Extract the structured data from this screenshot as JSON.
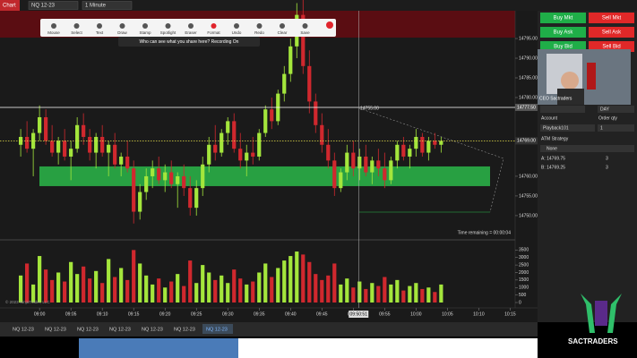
{
  "header": {
    "tab": "Chart",
    "instrument": "NQ 12-23",
    "interval": "1 Minute"
  },
  "toolbar": {
    "items": [
      "Mouse",
      "Select",
      "Text",
      "Draw",
      "Stamp",
      "Spotlight",
      "Eraser",
      "Format",
      "Undo",
      "Redo",
      "Clear",
      "Save"
    ],
    "notice": "Who can see what you share here? Recording On"
  },
  "chart_data": {
    "type": "candlestick",
    "candles": [
      [
        14768,
        14772,
        14765,
        14770
      ],
      [
        14770,
        14774,
        14766,
        14767
      ],
      [
        14767,
        14772,
        14760,
        14771
      ],
      [
        14771,
        14778,
        14769,
        14775
      ],
      [
        14775,
        14777,
        14768,
        14769
      ],
      [
        14769,
        14773,
        14765,
        14766
      ],
      [
        14766,
        14770,
        14763,
        14769
      ],
      [
        14769,
        14772,
        14764,
        14765
      ],
      [
        14765,
        14769,
        14759,
        14767
      ],
      [
        14767,
        14775,
        14766,
        14773
      ],
      [
        14773,
        14776,
        14768,
        14770
      ],
      [
        14770,
        14772,
        14764,
        14766
      ],
      [
        14766,
        14771,
        14762,
        14770
      ],
      [
        14770,
        14773,
        14765,
        14766
      ],
      [
        14766,
        14769,
        14760,
        14768
      ],
      [
        14768,
        14771,
        14762,
        14763
      ],
      [
        14763,
        14766,
        14760,
        14765
      ],
      [
        14765,
        14769,
        14761,
        14762
      ],
      [
        14762,
        14764,
        14748,
        14751
      ],
      [
        14751,
        14758,
        14749,
        14756
      ],
      [
        14756,
        14762,
        14754,
        14760
      ],
      [
        14760,
        14764,
        14757,
        14762
      ],
      [
        14762,
        14765,
        14758,
        14759
      ],
      [
        14759,
        14763,
        14756,
        14761
      ],
      [
        14761,
        14764,
        14757,
        14758
      ],
      [
        14758,
        14761,
        14752,
        14760
      ],
      [
        14760,
        14763,
        14755,
        14757
      ],
      [
        14757,
        14760,
        14750,
        14752
      ],
      [
        14752,
        14759,
        14750,
        14757
      ],
      [
        14757,
        14765,
        14755,
        14763
      ],
      [
        14763,
        14770,
        14761,
        14768
      ],
      [
        14768,
        14773,
        14764,
        14766
      ],
      [
        14766,
        14772,
        14765,
        14771
      ],
      [
        14771,
        14775,
        14768,
        14774
      ],
      [
        14774,
        14776,
        14766,
        14767
      ],
      [
        14767,
        14771,
        14762,
        14764
      ],
      [
        14764,
        14768,
        14760,
        14766
      ],
      [
        14766,
        14770,
        14763,
        14765
      ],
      [
        14765,
        14772,
        14764,
        14771
      ],
      [
        14771,
        14778,
        14770,
        14777
      ],
      [
        14777,
        14780,
        14772,
        14774
      ],
      [
        14774,
        14782,
        14773,
        14781
      ],
      [
        14781,
        14788,
        14779,
        14786
      ],
      [
        14786,
        14795,
        14784,
        14793
      ],
      [
        14793,
        14804,
        14790,
        14801
      ],
      [
        14801,
        14805,
        14786,
        14788
      ],
      [
        14788,
        14792,
        14776,
        14779
      ],
      [
        14779,
        14781,
        14771,
        14773
      ],
      [
        14773,
        14776,
        14766,
        14768
      ],
      [
        14768,
        14772,
        14762,
        14764
      ],
      [
        14764,
        14766,
        14755,
        14757
      ],
      [
        14757,
        14762,
        14756,
        14761
      ],
      [
        14761,
        14768,
        14759,
        14766
      ],
      [
        14766,
        14769,
        14760,
        14762
      ],
      [
        14762,
        14767,
        14759,
        14765
      ],
      [
        14765,
        14768,
        14760,
        14761
      ],
      [
        14761,
        14765,
        14758,
        14764
      ],
      [
        14764,
        14767,
        14760,
        14762
      ],
      [
        14762,
        14766,
        14757,
        14759
      ],
      [
        14759,
        14765,
        14758,
        14764
      ],
      [
        14764,
        14769,
        14762,
        14768
      ],
      [
        14768,
        14770,
        14764,
        14765
      ],
      [
        14765,
        14768,
        14762,
        14767
      ],
      [
        14767,
        14772,
        14765,
        14770
      ],
      [
        14770,
        14771,
        14765,
        14766
      ],
      [
        14766,
        14770,
        14764,
        14769
      ],
      [
        14769,
        14771,
        14767,
        14768
      ],
      [
        14768,
        14770,
        14766,
        14769
      ]
    ],
    "volume": [
      1800,
      2600,
      1200,
      3100,
      2200,
      1500,
      2000,
      1400,
      2700,
      1900,
      2400,
      1600,
      2100,
      1300,
      2900,
      1700,
      2300,
      1500,
      3500,
      2600,
      1800,
      1200,
      1600,
      1000,
      1400,
      1900,
      1100,
      2800,
      1300,
      2500,
      2000,
      1500,
      1800,
      1300,
      2200,
      1600,
      1200,
      1400,
      2000,
      2600,
      1700,
      2300,
      2800,
      3100,
      3400,
      3200,
      2700,
      1900,
      1500,
      1800,
      2600,
      1200,
      1600,
      1000,
      1400,
      900,
      1300,
      1100,
      1700,
      1200,
      1500,
      800,
      1100,
      1300,
      900,
      1000,
      700,
      1200
    ],
    "up_color": "#a4e63c",
    "down_color": "#d0282e",
    "xlim": [
      -3.3,
      78.8
    ],
    "xticks": [
      {
        "value": 3,
        "label": "09:00"
      },
      {
        "value": 8,
        "label": "09:05"
      },
      {
        "value": 13,
        "label": "09:10"
      },
      {
        "value": 18,
        "label": "09:15"
      },
      {
        "value": 23,
        "label": "09:20"
      },
      {
        "value": 28,
        "label": "09:25"
      },
      {
        "value": 33,
        "label": "09:30"
      },
      {
        "value": 38,
        "label": "09:35"
      },
      {
        "value": 43,
        "label": "09:40"
      },
      {
        "value": 48,
        "label": "09:45"
      },
      {
        "value": 53,
        "label": "09:50"
      },
      {
        "value": 58,
        "label": "09:55"
      },
      {
        "value": 63,
        "label": "10:00"
      },
      {
        "value": 68,
        "label": "10:05"
      },
      {
        "value": 73,
        "label": "10:10"
      },
      {
        "value": 78,
        "label": "10:15"
      }
    ],
    "ylim": [
      14744.3,
      14801.6
    ],
    "yticks": [
      {
        "value": 14795,
        "label": "14795.00"
      },
      {
        "value": 14790,
        "label": "14790.00"
      },
      {
        "value": 14785,
        "label": "14785.00"
      },
      {
        "value": 14780,
        "label": "14780.00"
      },
      {
        "value": 14760,
        "label": "14760.00"
      },
      {
        "value": 14755,
        "label": "14755.00"
      },
      {
        "value": 14750,
        "label": "14750.00"
      }
    ],
    "vlim": [
      0,
      3700
    ],
    "vticks": [
      3500,
      3000,
      2500,
      2000,
      1500,
      1000,
      500,
      0
    ],
    "lines": [
      {
        "value": 14777.5,
        "label": "14777.50",
        "color": "#ffffff"
      },
      {
        "value": 14769,
        "label": "14769.00",
        "color": "#e8e04a"
      }
    ],
    "zone": {
      "low": 14757.5,
      "high": 14762.5,
      "color": "#2bb84a"
    },
    "cursor": {
      "value": 53.85,
      "label": "09:50:51"
    },
    "line_label": "14755.00",
    "time_remaining": "Time remaining = 00:00:04",
    "copyright": "© 2023 NinjaTrader, LLC"
  },
  "panel": {
    "buttons": [
      [
        "Buy Mkt",
        "Sell Mkt"
      ],
      [
        "Buy Ask",
        "Sell Ask"
      ],
      [
        "Buy Bid",
        "Sell Bid"
      ]
    ],
    "webcam_name": "CEO Sactraders",
    "tif": "DAY",
    "account_label": "Account",
    "account": "Playback101",
    "qty_label": "Order qty",
    "qty": "1",
    "atm_label": "ATM Strategy",
    "atm": "None",
    "ask": "A: 14769.75",
    "ask_qty": "3",
    "bid": "B: 14769.25",
    "bid_qty": "3"
  },
  "tabs": [
    "NQ 12-23",
    "NQ 12-23",
    "NQ 12-23",
    "NQ 12-23",
    "NQ 12-23",
    "NQ 12-23",
    "NQ 12-23"
  ],
  "logo": "SACTRADERS"
}
